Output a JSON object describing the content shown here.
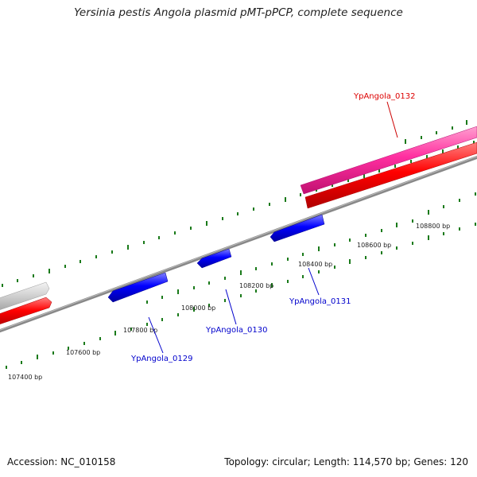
{
  "title": "Yersinia pestis Angola plasmid pMT-pPCP, complete sequence",
  "footer": {
    "accession": "Accession: NC_010158",
    "topology": "Topology: circular; Length: 114,570 bp; Genes: 120"
  },
  "positions": [
    "107400 bp",
    "107600 bp",
    "107800 bp",
    "108000 bp",
    "108200 bp",
    "108400 bp",
    "108600 bp",
    "108800 bp"
  ],
  "genes": [
    {
      "id": "YpAngola_0129",
      "strand": "reverse",
      "color": "#0000dd"
    },
    {
      "id": "YpAngola_0130",
      "strand": "reverse",
      "color": "#0000dd"
    },
    {
      "id": "YpAngola_0131",
      "strand": "reverse",
      "color": "#0000dd"
    },
    {
      "id": "YpAngola_0132",
      "strand": "forward",
      "color": "#dd0000"
    }
  ],
  "colors": {
    "forward_cds": "#ff0000",
    "reverse_cds": "#0000ff",
    "pink_feature": "#ff2fa0",
    "gray_feature": "#cccccc",
    "backbone": "#888888",
    "tick": "#1a7a1a"
  }
}
